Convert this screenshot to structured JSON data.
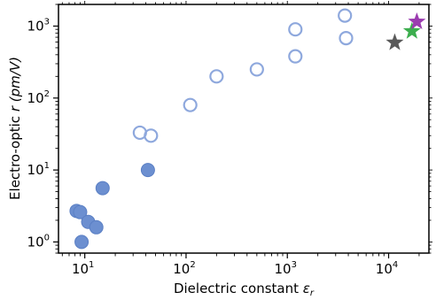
{
  "chart_data": {
    "type": "scatter",
    "xlabel": "Dielectric constant",
    "xlabel_symbol": "ε",
    "xlabel_sub": "r",
    "ylabel_prefix": "Electro-optic",
    "ylabel_var": "r",
    "ylabel_unit": "(pm/V)",
    "x_scale": "log",
    "y_scale": "log",
    "xlim": [
      5.5,
      25000
    ],
    "ylim": [
      0.7,
      2000
    ],
    "x_ticks": [
      {
        "value": 10,
        "base": "10",
        "exp": "1"
      },
      {
        "value": 100,
        "base": "10",
        "exp": "2"
      },
      {
        "value": 1000,
        "base": "10",
        "exp": "3"
      },
      {
        "value": 10000,
        "base": "10",
        "exp": "4"
      }
    ],
    "y_ticks": [
      {
        "value": 1,
        "base": "10",
        "exp": "0"
      },
      {
        "value": 10,
        "base": "10",
        "exp": "1"
      },
      {
        "value": 100,
        "base": "10",
        "exp": "2"
      },
      {
        "value": 1000,
        "base": "10",
        "exp": "3"
      }
    ],
    "grid": false,
    "legend": false,
    "colors": {
      "filled": "#6c8fd0",
      "hollow_stroke": "#8ea8dd",
      "star_gray": "#5a5a5a",
      "star_green": "#3cae4e",
      "star_purple": "#9b3bb0"
    },
    "series": [
      {
        "marker": "filled-circle",
        "points": [
          {
            "x": 8.3,
            "y": 2.7
          },
          {
            "x": 9.0,
            "y": 2.6
          },
          {
            "x": 10.8,
            "y": 1.9
          },
          {
            "x": 13.0,
            "y": 1.6
          },
          {
            "x": 9.3,
            "y": 1.0
          },
          {
            "x": 15.0,
            "y": 5.6
          },
          {
            "x": 42.0,
            "y": 10.0
          }
        ]
      },
      {
        "marker": "hollow-circle",
        "points": [
          {
            "x": 35,
            "y": 33
          },
          {
            "x": 45,
            "y": 30
          },
          {
            "x": 110,
            "y": 80
          },
          {
            "x": 200,
            "y": 200
          },
          {
            "x": 500,
            "y": 250
          },
          {
            "x": 1200,
            "y": 380
          },
          {
            "x": 1200,
            "y": 900
          },
          {
            "x": 3700,
            "y": 1400
          },
          {
            "x": 3800,
            "y": 680
          }
        ]
      },
      {
        "marker": "star",
        "points": [
          {
            "x": 11500,
            "y": 590,
            "color": "star_gray"
          },
          {
            "x": 17000,
            "y": 850,
            "color": "star_green"
          },
          {
            "x": 19000,
            "y": 1150,
            "color": "star_purple"
          }
        ]
      }
    ]
  }
}
